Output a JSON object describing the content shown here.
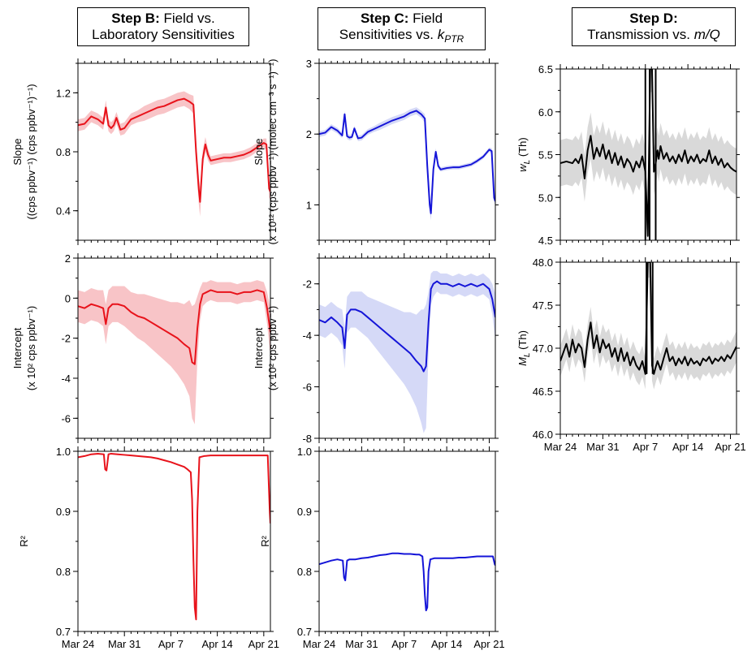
{
  "titles": {
    "b": {
      "bold": "Step B:",
      "line1_rest": " Field vs.",
      "line2": "Laboratory Sensitivities"
    },
    "c": {
      "bold": "Step C:",
      "line1_rest": " Field",
      "line2_pre": "Sensitivities vs. ",
      "line2_k": "k",
      "line2_sub": "PTR"
    },
    "d": {
      "bold": "Step D:",
      "line2_pre": "Transmission vs. ",
      "line2_it": "m/Q"
    }
  },
  "x_axis": {
    "ticks": [
      "Mar 24",
      "Mar 31",
      "Apr 7",
      "Apr 14",
      "Apr 21"
    ],
    "tick_days": [
      0,
      7,
      14,
      21,
      28
    ],
    "range_days": [
      0,
      29
    ]
  },
  "colors": {
    "red": "#e8131b",
    "red_band": "#f8c4c7",
    "blue": "#1515d8",
    "blue_band": "#d5d9f7",
    "black": "#000000",
    "gray_band": "#d9d9d9"
  },
  "chart_data": [
    {
      "type": "line",
      "panel": "B-slope",
      "color": "red",
      "ylabel": [
        "Slope",
        "((cps ppbv⁻¹) (cps ppbv⁻¹)⁻¹)"
      ],
      "ylim": [
        0.2,
        1.4
      ],
      "yticks": [
        0.4,
        0.8,
        1.2
      ],
      "ytick_labels": [
        "0.4",
        "0.8",
        "1.2"
      ],
      "x": [
        0,
        1,
        2,
        3,
        3.8,
        4.2,
        4.6,
        5.0,
        5.4,
        5.8,
        6.4,
        7,
        8,
        9,
        10,
        11,
        12,
        13,
        14,
        15,
        16,
        16.8,
        17.4,
        17.8,
        18.2,
        18.4,
        18.8,
        19.2,
        19.6,
        20,
        21,
        22,
        23,
        24,
        25,
        26,
        27,
        28,
        28.4,
        28.8,
        29
      ],
      "values": [
        0.98,
        0.99,
        1.04,
        1.02,
        0.99,
        1.1,
        0.98,
        0.96,
        0.98,
        1.03,
        0.95,
        0.96,
        1.02,
        1.04,
        1.06,
        1.08,
        1.1,
        1.11,
        1.13,
        1.15,
        1.16,
        1.14,
        1.12,
        0.8,
        0.55,
        0.46,
        0.75,
        0.85,
        0.78,
        0.74,
        0.75,
        0.76,
        0.76,
        0.77,
        0.78,
        0.8,
        0.83,
        0.86,
        0.85,
        0.55,
        0.53
      ],
      "band": [
        0.04,
        0.04,
        0.04,
        0.04,
        0.04,
        0.05,
        0.04,
        0.04,
        0.04,
        0.04,
        0.04,
        0.04,
        0.04,
        0.04,
        0.05,
        0.05,
        0.05,
        0.05,
        0.05,
        0.05,
        0.05,
        0.05,
        0.06,
        0.08,
        0.1,
        0.1,
        0.06,
        0.05,
        0.04,
        0.03,
        0.03,
        0.03,
        0.03,
        0.03,
        0.03,
        0.03,
        0.03,
        0.03,
        0.04,
        0.06,
        0.06
      ]
    },
    {
      "type": "line",
      "panel": "B-intercept",
      "color": "red",
      "ylabel": [
        "Intercept",
        "(x 10² cps ppbv⁻¹)"
      ],
      "ylim": [
        -7.0,
        2.0
      ],
      "yticks": [
        -6,
        -4,
        -2,
        0,
        2
      ],
      "ytick_labels": [
        "-6",
        "-4",
        "-2",
        "0",
        "2"
      ],
      "x": [
        0,
        1,
        2,
        3,
        3.8,
        4.2,
        4.6,
        5.2,
        6,
        7,
        8,
        9,
        10,
        11,
        12,
        13,
        14,
        15,
        16,
        16.8,
        17.2,
        17.6,
        18,
        18.4,
        18.8,
        19.4,
        20,
        21,
        22,
        23,
        24,
        25,
        26,
        27,
        28,
        28.5,
        29
      ],
      "values": [
        -0.4,
        -0.5,
        -0.3,
        -0.4,
        -0.5,
        -1.3,
        -0.5,
        -0.3,
        -0.3,
        -0.4,
        -0.7,
        -0.9,
        -1.0,
        -1.2,
        -1.4,
        -1.6,
        -1.8,
        -2.0,
        -2.3,
        -2.5,
        -3.2,
        -3.3,
        -1.5,
        -0.3,
        0.2,
        0.3,
        0.4,
        0.3,
        0.3,
        0.3,
        0.2,
        0.3,
        0.3,
        0.4,
        0.3,
        -0.5,
        -1.7
      ],
      "band": [
        0.8,
        0.8,
        0.8,
        0.8,
        0.9,
        1.0,
        0.9,
        0.9,
        0.9,
        1.0,
        1.0,
        1.1,
        1.2,
        1.3,
        1.4,
        1.5,
        1.6,
        1.8,
        2.0,
        2.4,
        2.8,
        3.0,
        1.6,
        0.8,
        0.6,
        0.5,
        0.5,
        0.5,
        0.5,
        0.5,
        0.5,
        0.5,
        0.5,
        0.5,
        0.5,
        0.8,
        1.2
      ]
    },
    {
      "type": "line",
      "panel": "B-r2",
      "color": "red",
      "ylabel": [
        "R²"
      ],
      "ylim": [
        0.7,
        1.0
      ],
      "yticks": [
        0.7,
        0.8,
        0.9,
        1.0
      ],
      "ytick_labels": [
        "0.7",
        "0.8",
        "0.9",
        "1.0"
      ],
      "x": [
        0,
        1,
        2,
        3,
        3.9,
        4.1,
        4.3,
        4.6,
        5,
        6,
        7,
        8,
        9,
        10,
        11,
        12,
        13,
        14,
        15,
        16,
        16.5,
        17,
        17.2,
        17.4,
        17.6,
        17.8,
        18.0,
        18.3,
        19,
        20,
        21,
        22,
        23,
        24,
        25,
        26,
        27,
        28,
        28.6,
        28.9,
        29
      ],
      "values": [
        0.99,
        0.992,
        0.995,
        0.996,
        0.995,
        0.97,
        0.968,
        0.995,
        0.996,
        0.995,
        0.994,
        0.993,
        0.992,
        0.991,
        0.99,
        0.988,
        0.985,
        0.982,
        0.978,
        0.974,
        0.97,
        0.965,
        0.92,
        0.82,
        0.74,
        0.72,
        0.9,
        0.99,
        0.992,
        0.993,
        0.993,
        0.993,
        0.993,
        0.993,
        0.993,
        0.993,
        0.993,
        0.993,
        0.993,
        0.9,
        0.88
      ],
      "band": null
    },
    {
      "type": "line",
      "panel": "C-slope",
      "color": "blue",
      "ylabel": [
        "Slope",
        "(x 10¹² (cps ppbv⁻¹) (molec cm⁻³ s⁻¹)⁻¹)"
      ],
      "ylim": [
        0.5,
        3.0
      ],
      "yticks": [
        1,
        2,
        3
      ],
      "ytick_labels": [
        "1",
        "2",
        "3"
      ],
      "x": [
        0,
        1,
        2,
        3,
        3.8,
        4.2,
        4.6,
        5.0,
        5.4,
        5.8,
        6.4,
        7,
        8,
        9,
        10,
        11,
        12,
        13,
        14,
        15,
        16,
        16.8,
        17.4,
        17.8,
        18.2,
        18.4,
        18.8,
        19.2,
        19.6,
        20,
        21,
        22,
        23,
        24,
        25,
        26,
        27,
        28,
        28.4,
        28.8,
        29
      ],
      "values": [
        2.0,
        2.02,
        2.1,
        2.05,
        1.98,
        2.28,
        1.97,
        1.95,
        1.96,
        2.08,
        1.94,
        1.95,
        2.03,
        2.07,
        2.11,
        2.15,
        2.19,
        2.22,
        2.25,
        2.3,
        2.33,
        2.28,
        2.22,
        1.55,
        1.0,
        0.88,
        1.5,
        1.75,
        1.55,
        1.5,
        1.52,
        1.53,
        1.53,
        1.55,
        1.57,
        1.62,
        1.68,
        1.78,
        1.76,
        1.1,
        1.05
      ],
      "band": [
        0.04,
        0.04,
        0.04,
        0.04,
        0.04,
        0.05,
        0.04,
        0.04,
        0.04,
        0.04,
        0.04,
        0.04,
        0.04,
        0.04,
        0.05,
        0.05,
        0.05,
        0.05,
        0.05,
        0.05,
        0.05,
        0.05,
        0.06,
        0.08,
        0.1,
        0.1,
        0.06,
        0.05,
        0.04,
        0.03,
        0.03,
        0.03,
        0.03,
        0.03,
        0.03,
        0.03,
        0.03,
        0.03,
        0.04,
        0.06,
        0.06
      ]
    },
    {
      "type": "line",
      "panel": "C-intercept",
      "color": "blue",
      "ylabel": [
        "Intercept",
        "(x 10² cps ppbv⁻¹)"
      ],
      "ylim": [
        -8.0,
        -1.0
      ],
      "yticks": [
        -8,
        -6,
        -4,
        -2
      ],
      "ytick_labels": [
        "-8",
        "-6",
        "-4",
        "-2"
      ],
      "x": [
        0,
        1,
        2,
        3,
        3.8,
        4.2,
        4.6,
        5.2,
        6,
        7,
        8,
        9,
        10,
        11,
        12,
        13,
        14,
        15,
        16,
        16.8,
        17.2,
        17.6,
        18,
        18.4,
        18.8,
        19.4,
        20,
        21,
        22,
        23,
        24,
        25,
        26,
        27,
        28,
        28.5,
        29
      ],
      "values": [
        -3.4,
        -3.5,
        -3.3,
        -3.5,
        -3.7,
        -4.5,
        -3.2,
        -3.0,
        -3.0,
        -3.1,
        -3.3,
        -3.5,
        -3.7,
        -3.9,
        -4.1,
        -4.3,
        -4.5,
        -4.7,
        -5.0,
        -5.2,
        -5.4,
        -5.2,
        -3.5,
        -2.2,
        -2.0,
        -1.9,
        -2.0,
        -2.0,
        -2.1,
        -2.0,
        -2.1,
        -2.0,
        -2.1,
        -2.0,
        -2.2,
        -2.6,
        -3.3
      ],
      "band": [
        0.6,
        0.6,
        0.6,
        0.6,
        0.7,
        0.8,
        0.7,
        0.7,
        0.7,
        0.8,
        0.8,
        0.9,
        1.0,
        1.1,
        1.2,
        1.3,
        1.4,
        1.6,
        1.8,
        2.2,
        2.4,
        2.4,
        1.2,
        0.6,
        0.5,
        0.4,
        0.4,
        0.4,
        0.4,
        0.4,
        0.4,
        0.4,
        0.4,
        0.4,
        0.4,
        0.6,
        0.9
      ]
    },
    {
      "type": "line",
      "panel": "C-r2",
      "color": "blue",
      "ylabel": [
        "R²"
      ],
      "ylim": [
        0.7,
        1.0
      ],
      "yticks": [
        0.7,
        0.8,
        0.9,
        1.0
      ],
      "ytick_labels": [
        "0.7",
        "0.8",
        "0.9",
        "1.0"
      ],
      "x": [
        0,
        1,
        2,
        3,
        3.9,
        4.1,
        4.3,
        4.6,
        5,
        6,
        7,
        8,
        9,
        10,
        11,
        12,
        13,
        14,
        15,
        16,
        16.5,
        17,
        17.2,
        17.4,
        17.6,
        17.8,
        18.0,
        18.3,
        19,
        20,
        21,
        22,
        23,
        24,
        25,
        26,
        27,
        28,
        28.6,
        28.9,
        29
      ],
      "values": [
        0.812,
        0.815,
        0.818,
        0.82,
        0.818,
        0.79,
        0.785,
        0.818,
        0.82,
        0.82,
        0.822,
        0.823,
        0.825,
        0.827,
        0.828,
        0.83,
        0.83,
        0.829,
        0.829,
        0.828,
        0.828,
        0.825,
        0.8,
        0.76,
        0.735,
        0.74,
        0.8,
        0.82,
        0.822,
        0.822,
        0.822,
        0.822,
        0.823,
        0.823,
        0.824,
        0.825,
        0.825,
        0.825,
        0.825,
        0.812,
        0.81
      ],
      "band": null
    },
    {
      "type": "line",
      "panel": "D-wL",
      "color": "black",
      "ylabel": [
        "w_L (Th)"
      ],
      "ylabel_main": "w",
      "ylabel_sub": "L",
      "ylabel_unit": " (Th)",
      "ylim": [
        4.5,
        6.5
      ],
      "yticks": [
        4.5,
        5.0,
        5.5,
        6.0,
        6.5
      ],
      "ytick_labels": [
        "4.5",
        "5.0",
        "5.5",
        "6.0",
        "6.5"
      ],
      "x": [
        0,
        1,
        2,
        2.5,
        3,
        3.5,
        4,
        4.5,
        5,
        5.5,
        6,
        6.5,
        7,
        7.5,
        8,
        8.5,
        9,
        9.5,
        10,
        10.5,
        11,
        11.5,
        12,
        12.5,
        13,
        13.5,
        14,
        14.4,
        14.8,
        15.1,
        15.4,
        15.7,
        16,
        16.2,
        16.5,
        17,
        17.5,
        18,
        18.5,
        19,
        19.5,
        20,
        20.5,
        21,
        21.5,
        22,
        22.5,
        23,
        23.5,
        24,
        24.5,
        25,
        25.5,
        26,
        26.5,
        27,
        27.5,
        28,
        28.5,
        29
      ],
      "values": [
        5.4,
        5.42,
        5.4,
        5.45,
        5.4,
        5.5,
        5.22,
        5.55,
        5.72,
        5.45,
        5.58,
        5.48,
        5.62,
        5.45,
        5.55,
        5.4,
        5.52,
        5.38,
        5.48,
        5.35,
        5.45,
        5.4,
        5.3,
        5.42,
        5.35,
        5.48,
        5.3,
        4.55,
        6.5,
        6.5,
        5.3,
        5.4,
        5.55,
        5.45,
        5.6,
        5.45,
        5.52,
        5.42,
        5.48,
        5.4,
        5.5,
        5.42,
        5.55,
        5.4,
        5.48,
        5.42,
        5.5,
        5.4,
        5.45,
        5.42,
        5.55,
        5.4,
        5.48,
        5.38,
        5.45,
        5.35,
        5.4,
        5.35,
        5.32,
        5.3
      ],
      "band": 0.27,
      "spike": {
        "x_down": 14.0,
        "x_up1": 14.7,
        "x_up2": 15.7,
        "y_low": 4.5,
        "y_high": 6.5
      }
    },
    {
      "type": "line",
      "panel": "D-ML",
      "color": "black",
      "ylabel": [
        "M_L (Th)"
      ],
      "ylabel_main": "M",
      "ylabel_sub": "L",
      "ylabel_unit": " (Th)",
      "ylim": [
        46.0,
        48.0
      ],
      "yticks": [
        46.0,
        46.5,
        47.0,
        47.5,
        48.0
      ],
      "ytick_labels": [
        "46.0",
        "46.5",
        "47.0",
        "47.5",
        "48.0"
      ],
      "x": [
        0,
        0.5,
        1,
        1.5,
        2,
        2.5,
        3,
        3.5,
        4,
        4.5,
        5,
        5.5,
        6,
        6.5,
        7,
        7.5,
        8,
        8.5,
        9,
        9.5,
        10,
        10.5,
        11,
        11.5,
        12,
        12.5,
        13,
        13.5,
        14,
        14.4,
        14.8,
        15.1,
        15.4,
        15.7,
        16,
        16.5,
        17,
        17.5,
        18,
        18.5,
        19,
        19.5,
        20,
        20.5,
        21,
        21.5,
        22,
        22.5,
        23,
        23.5,
        24,
        24.5,
        25,
        25.5,
        26,
        26.5,
        27,
        27.5,
        28,
        28.5,
        29
      ],
      "values": [
        46.85,
        46.95,
        47.05,
        46.9,
        47.1,
        46.95,
        47.05,
        47.0,
        46.78,
        47.1,
        47.3,
        47.0,
        47.15,
        46.95,
        47.1,
        47.0,
        47.05,
        46.9,
        47.0,
        46.85,
        47.0,
        46.85,
        46.95,
        46.8,
        46.9,
        46.8,
        46.75,
        46.85,
        46.7,
        48.0,
        48.0,
        46.8,
        46.7,
        46.78,
        46.85,
        46.75,
        46.88,
        47.0,
        46.85,
        46.9,
        46.8,
        46.88,
        46.82,
        46.9,
        46.8,
        46.88,
        46.82,
        46.85,
        46.8,
        46.88,
        46.85,
        46.9,
        46.82,
        46.88,
        46.85,
        46.9,
        46.85,
        46.92,
        46.88,
        46.95,
        47.02
      ],
      "band": 0.18,
      "spike": {
        "x_down": 14.2,
        "x_up1": 14.2,
        "x_up2": 15.2,
        "y_low": 46.7,
        "y_high": 48.0
      }
    }
  ]
}
